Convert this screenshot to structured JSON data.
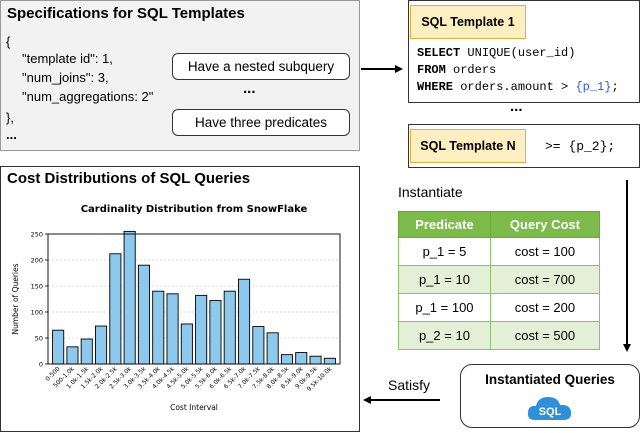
{
  "spec": {
    "title": "Specifications for SQL Templates",
    "lines": [
      "{",
      "\"template id\": 1,",
      "\"num_joins\": 3,",
      "\"num_aggregations: 2\"",
      "},",
      "..."
    ],
    "pill1": "Have a nested subquery",
    "pill2": "Have three predicates",
    "ellipsis": "..."
  },
  "template1": {
    "title": "SQL Template 1",
    "line1_kw": "SELECT",
    "line1_rest": " UNIQUE(user_id)",
    "line2_kw": "FROM",
    "line2_rest": " orders",
    "line3_kw": "WHERE",
    "line3_rest": " orders.amount > ",
    "line3_param": "{p_1}",
    "line3_end": ";"
  },
  "between_ellipsis": "...",
  "templateN": {
    "title": "SQL Template N",
    "code": ">= {p_2};"
  },
  "instantiate_label": "Instantiate",
  "satisfy_label": "Satisfy",
  "table": {
    "headers": [
      "Predicate",
      "Query Cost"
    ],
    "rows": [
      [
        "p_1 = 5",
        "cost = 100"
      ],
      [
        "p_1 = 10",
        "cost = 700"
      ],
      [
        "p_1 = 100",
        "cost = 200"
      ],
      [
        "p_2 = 10",
        "cost = 500"
      ]
    ]
  },
  "instantiated": {
    "title": "Instantiated Queries",
    "badge": "SQL"
  },
  "cost_panel": {
    "title": "Cost Distributions of SQL Queries"
  },
  "chart_data": {
    "type": "bar",
    "title": "Cardinality Distribution from SnowFlake",
    "xlabel": "Cost Interval",
    "ylabel": "Number of Queries",
    "ylim": [
      0,
      250
    ],
    "yticks": [
      0,
      50,
      100,
      150,
      200,
      250
    ],
    "ytick_labels": [
      "0",
      "50",
      "100",
      "150",
      "200",
      "250"
    ],
    "categories": [
      "0-500",
      "500-1.0k",
      "1.0k-1.5k",
      "1.5k-2.0k",
      "2.0k-2.5k",
      "2.5k-3.0k",
      "3.0k-3.5k",
      "3.5k-4.0k",
      "4.0k-4.5k",
      "4.5k-5.0k",
      "5.0k-5.5k",
      "5.5k-6.0k",
      "6.0k-6.5k",
      "6.5k-7.0k",
      "7.0k-7.5k",
      "7.5k-8.0k",
      "8.0k-8.5k",
      "8.5k-9.0k",
      "9.0k-9.5k",
      "9.5k-10.0k"
    ],
    "values": [
      65,
      33,
      48,
      73,
      212,
      255,
      190,
      140,
      135,
      77,
      132,
      122,
      140,
      163,
      72,
      60,
      18,
      22,
      15,
      11
    ],
    "grid": true,
    "bar_color": "#8dc9ec"
  }
}
